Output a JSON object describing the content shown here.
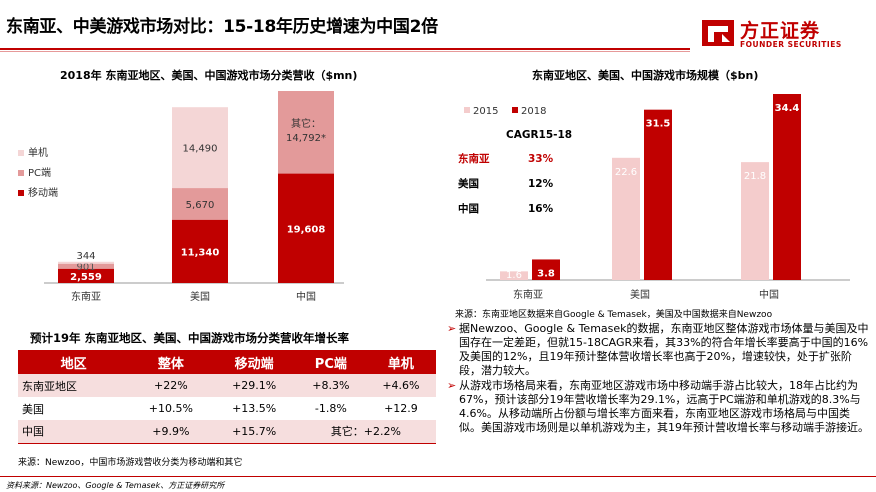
{
  "header": {
    "title": "东南亚、中美游戏市场对比：15-18年历史增速为中国2倍",
    "logo_cn": "方正证券",
    "logo_en": "FOUNDER SECURITIES",
    "colors": {
      "brand": "#c00000",
      "light": "#f4cccc",
      "mid": "#e39a9a"
    }
  },
  "chart_data": [
    {
      "type": "bar",
      "stacked": true,
      "title": "2018年 东南亚地区、美国、中国游戏市场分类营收（$mn)",
      "categories": [
        "东南亚",
        "美国",
        "中国"
      ],
      "series": [
        {
          "name": "移动端",
          "values": [
            2559,
            11340,
            19608
          ],
          "color": "#c00000"
        },
        {
          "name": "PC端",
          "values": [
            901,
            5670,
            null
          ],
          "color": "#e39a9a"
        },
        {
          "name": "单机",
          "values": [
            344,
            14490,
            null
          ],
          "color": "#f4d6d6"
        }
      ],
      "other_label": "其它：",
      "other_value_label": "14,792*",
      "other_value": 14792,
      "data_labels": {
        "移动端": [
          "2,559",
          "11,340",
          "19,608"
        ],
        "PC端": [
          "901",
          "5,670",
          ""
        ],
        "单机": [
          "344",
          "14,490",
          ""
        ]
      },
      "legend": [
        "单机",
        "PC端",
        "移动端"
      ],
      "legend_position": "left"
    },
    {
      "type": "bar",
      "title": "东南亚地区、美国、中国游戏市场规模（$bn)",
      "categories": [
        "东南亚",
        "美国",
        "中国"
      ],
      "series": [
        {
          "name": "2015",
          "values": [
            1.6,
            22.6,
            21.8
          ],
          "color": "#f4cccc"
        },
        {
          "name": "2018",
          "values": [
            3.8,
            31.5,
            34.4
          ],
          "color": "#c00000"
        }
      ],
      "data_labels": {
        "2015": [
          "1.6",
          "22.6",
          "21.8"
        ],
        "2018": [
          "3.8",
          "31.5",
          "34.4"
        ]
      },
      "legend_position": "top-left",
      "cagr": {
        "title": "CAGR15-18",
        "rows": [
          {
            "name": "东南亚",
            "value": "33%"
          },
          {
            "name": "美国",
            "value": "12%"
          },
          {
            "name": "中国",
            "value": "16%"
          }
        ]
      }
    }
  ],
  "table": {
    "title": "预计19年 东南亚地区、美国、中国游戏市场分类营收年增长率",
    "headers": [
      "地区",
      "整体",
      "移动端",
      "PC端",
      "单机"
    ],
    "rows": [
      [
        "东南亚地区",
        "+22%",
        "+29.1%",
        "+8.3%",
        "+4.6%"
      ],
      [
        "美国",
        "+10.5%",
        "+13.5%",
        "-1.8%",
        "+12.9"
      ],
      [
        "中国",
        "+9.9%",
        "+15.7%",
        "其它：+2.2%"
      ]
    ]
  },
  "sources": {
    "left": "来源：Newzoo，中国市场游戏营收分类为移动端和其它",
    "right": "来源：东南亚地区数据来自Google & Temasek，美国及中国数据来自Newzoo",
    "bottom": "资料来源：Newzoo、Google & Temasek、方正证券研究所"
  },
  "bullets": [
    "据Newzoo、Google & Temasek的数据，东南亚地区整体游戏市场体量与美国及中国存在一定差距，但就15-18CAGR来看，其33%的符合年增长率要高于中国的16%及美国的12%，且19年预计整体营收增长率也高于20%，增速较快，处于扩张阶段，潜力较大。",
    "从游戏市场格局来看，东南亚地区游戏市场中移动端手游占比较大，18年占比约为67%，预计该部分19年营收增长率为29.1%，远高于PC端游和单机游戏的8.3%与4.6%。从移动端所占份额与增长率方面来看，东南亚地区游戏市场格局与中国类似。美国游戏市场则是以单机游戏为主，其19年预计营收增长率与移动端手游接近。"
  ]
}
